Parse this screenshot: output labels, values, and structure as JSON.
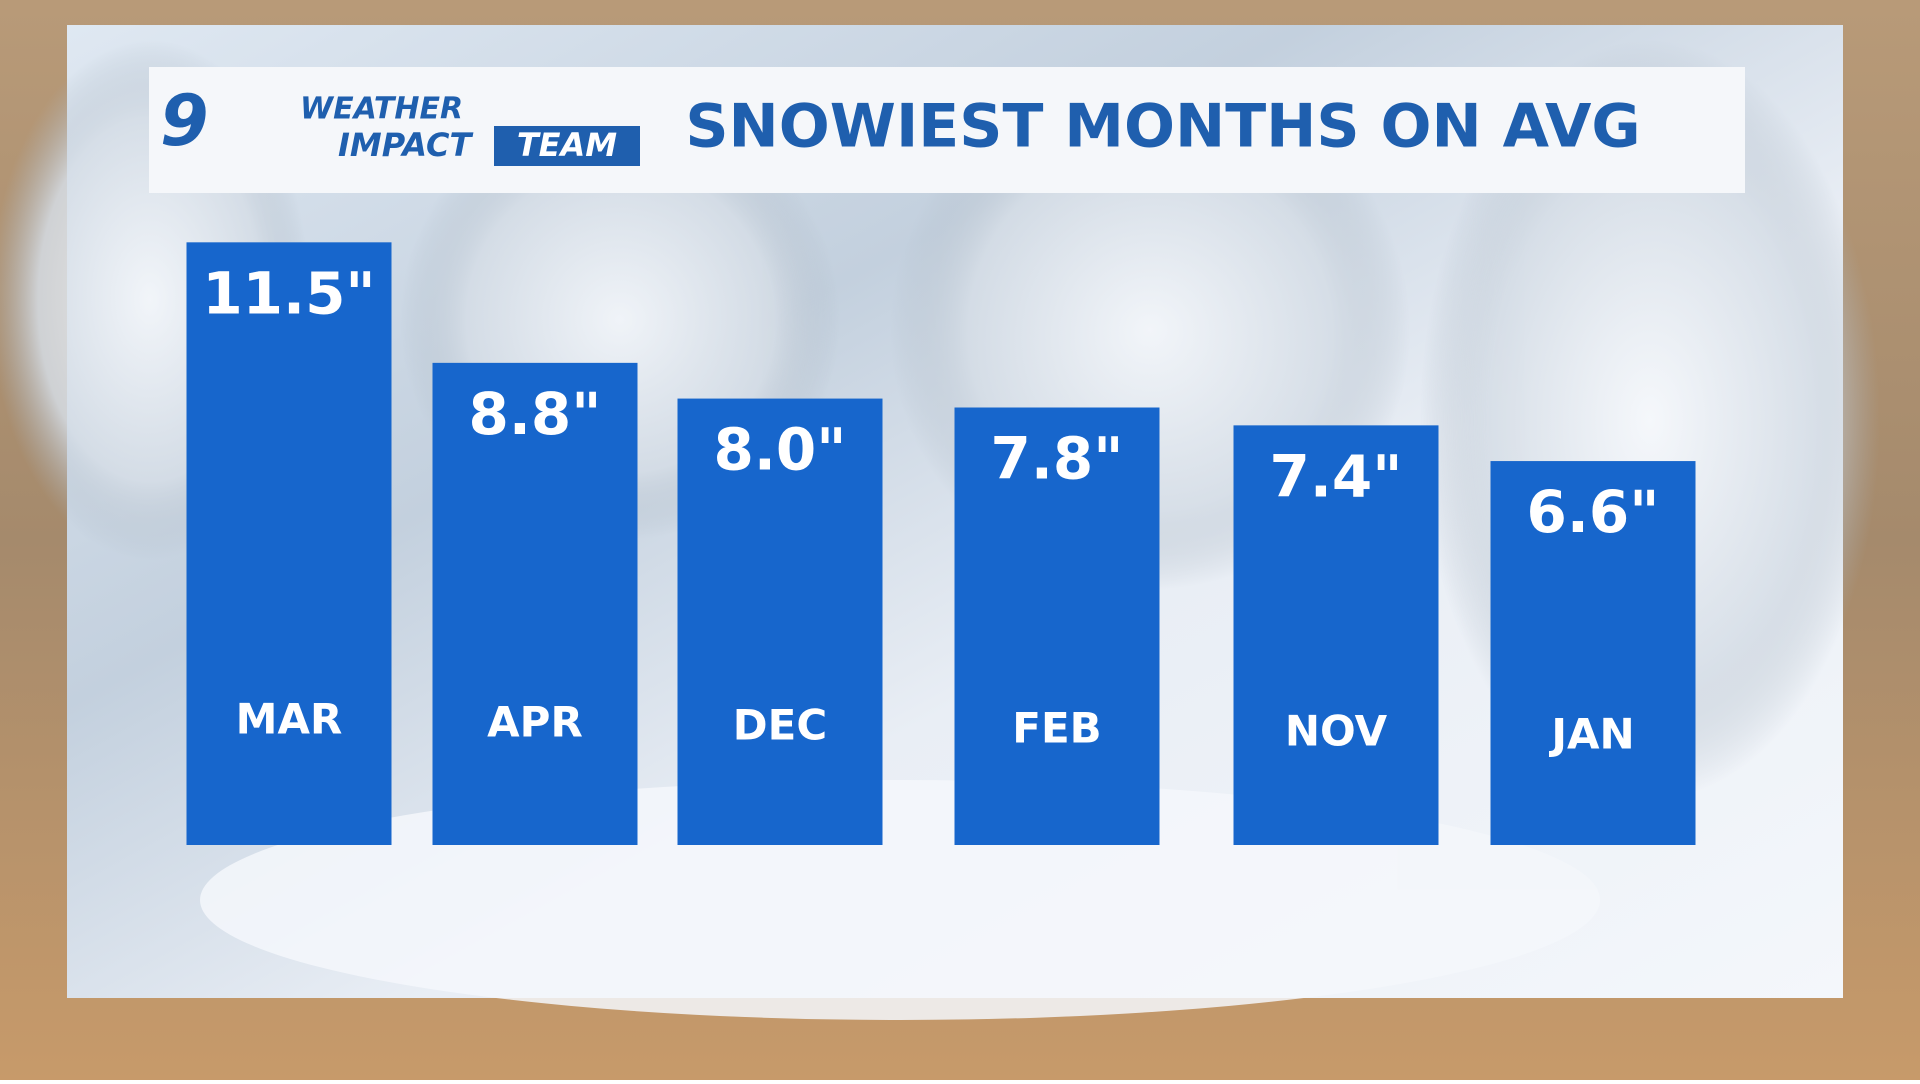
{
  "branding": {
    "number": "9",
    "line1": "WEATHER",
    "line2": "IMPACT",
    "line3": "TEAM"
  },
  "chart_data": {
    "type": "bar",
    "title": "SNOWIEST MONTHS ON AVG",
    "categories": [
      "MAR",
      "APR",
      "DEC",
      "FEB",
      "NOV",
      "JAN"
    ],
    "values": [
      11.5,
      8.8,
      8.0,
      7.8,
      7.4,
      6.6
    ],
    "value_labels": [
      "11.5\"",
      "8.8\"",
      "8.0\"",
      "7.8\"",
      "7.4\"",
      "6.6\""
    ],
    "color": "#1766cc",
    "ylim": [
      -2,
      12
    ]
  }
}
